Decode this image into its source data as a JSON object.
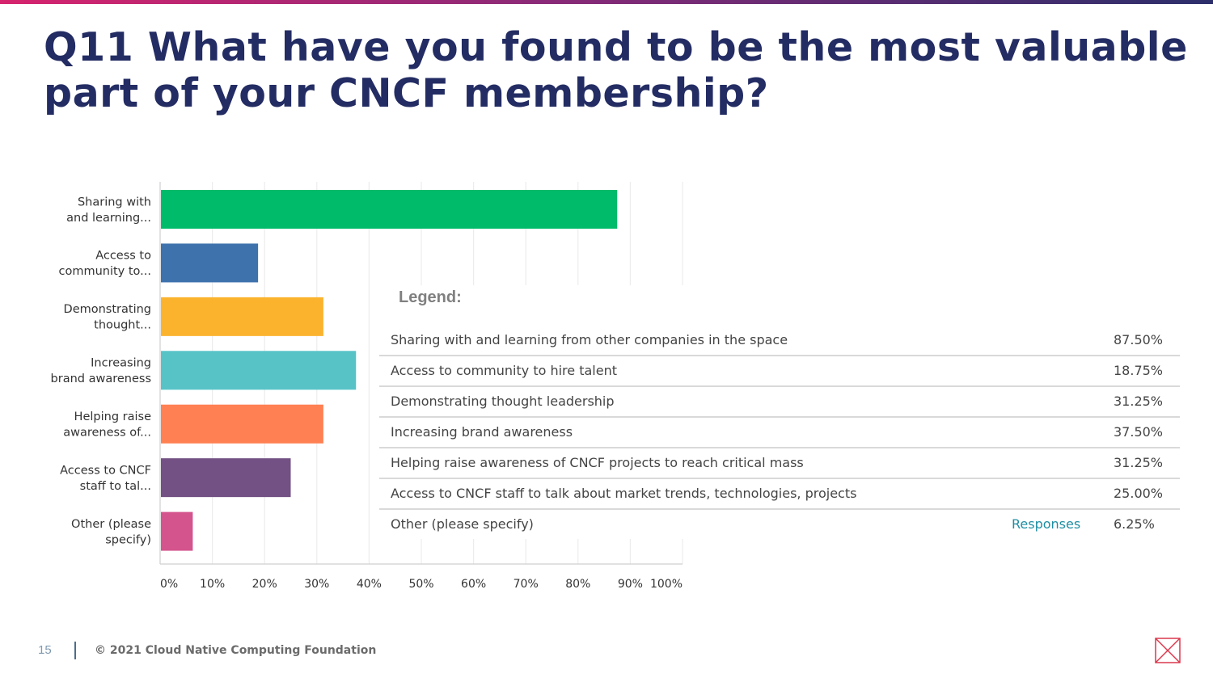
{
  "slide": {
    "title": "Q11 What have you found to be the most valuable part of your CNCF membership?",
    "page_number": "15",
    "copyright": "© 2021 Cloud Native Computing Foundation",
    "logo_icon": "cncf-x-logo-icon"
  },
  "colors": {
    "title": "#232c63",
    "bars": [
      "#00bb6a",
      "#3e72ad",
      "#fbb32e",
      "#57c3c7",
      "#ff8052",
      "#735184",
      "#d4548d"
    ],
    "legend_link": "#1f8ea3"
  },
  "chart_data": {
    "type": "bar",
    "orientation": "horizontal",
    "categories": [
      "Sharing with and learning...",
      "Access to community to...",
      "Demonstrating thought...",
      "Increasing brand awareness",
      "Helping raise awareness of...",
      "Access to CNCF staff to tal...",
      "Other (please specify)"
    ],
    "category_lines": [
      [
        "Sharing with",
        "and learning..."
      ],
      [
        "Access to",
        "community to..."
      ],
      [
        "Demonstrating",
        "thought..."
      ],
      [
        "Increasing",
        "brand awareness"
      ],
      [
        "Helping raise",
        "awareness of..."
      ],
      [
        "Access to CNCF",
        "staff to tal..."
      ],
      [
        "Other (please",
        "specify)"
      ]
    ],
    "values": [
      87.5,
      18.75,
      31.25,
      37.5,
      31.25,
      25.0,
      6.25
    ],
    "xlim": [
      0,
      100
    ],
    "x_ticks": [
      "0%",
      "10%",
      "20%",
      "30%",
      "40%",
      "50%",
      "60%",
      "70%",
      "80%",
      "90%",
      "100%"
    ],
    "grid": true,
    "xlabel": "",
    "ylabel": "",
    "legend": {
      "heading": "Legend:",
      "responses_label": "Responses",
      "rows": [
        {
          "label": "Sharing with and learning from other companies in the space",
          "value": "87.50%"
        },
        {
          "label": "Access to community to hire talent",
          "value": "18.75%"
        },
        {
          "label": "Demonstrating thought leadership",
          "value": "31.25%"
        },
        {
          "label": "Increasing brand awareness",
          "value": "37.50%"
        },
        {
          "label": "Helping raise awareness of CNCF projects to reach critical mass",
          "value": "31.25%"
        },
        {
          "label": "Access to CNCF staff to talk about market trends, technologies, projects",
          "value": "25.00%"
        },
        {
          "label": "Other (please specify)",
          "value": "6.25%"
        }
      ]
    }
  }
}
